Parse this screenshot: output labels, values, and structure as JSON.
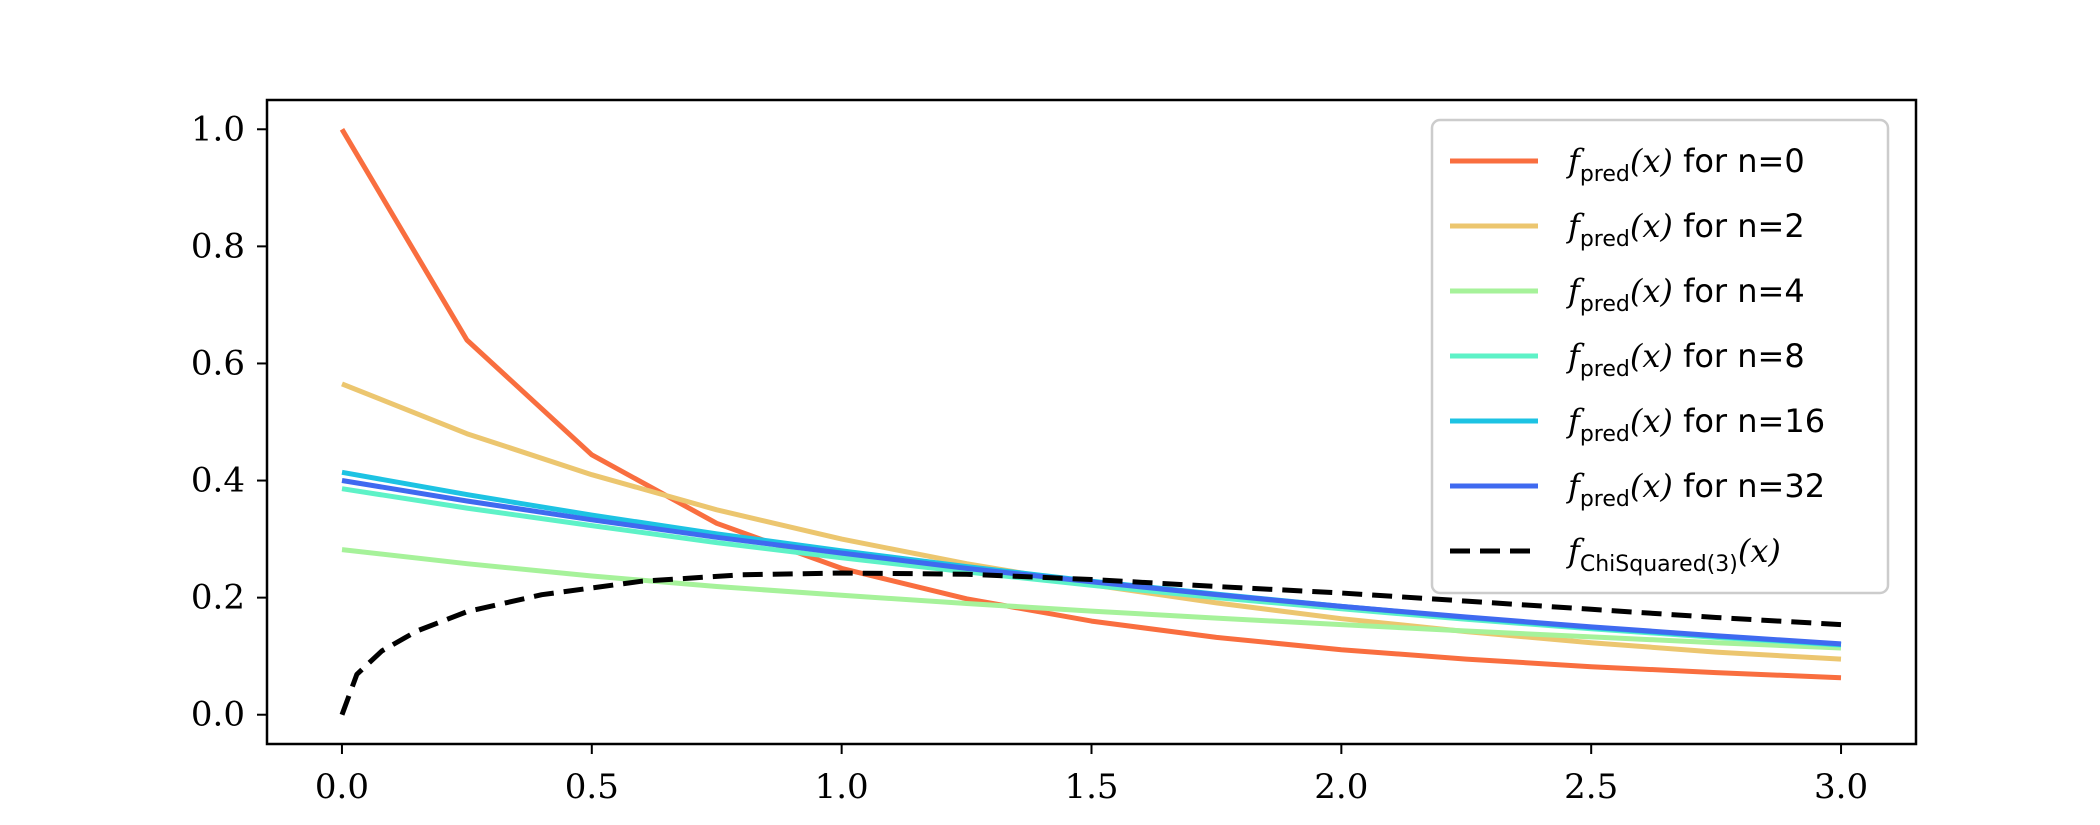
{
  "chart_data": {
    "type": "line",
    "title": "",
    "xlabel": "",
    "ylabel": "",
    "xlim": [
      -0.15,
      3.15
    ],
    "ylim": [
      -0.05,
      1.05
    ],
    "x_ticks": [
      "0.0",
      "0.5",
      "1.0",
      "1.5",
      "2.0",
      "2.5",
      "3.0"
    ],
    "y_ticks": [
      "0.0",
      "0.2",
      "0.4",
      "0.6",
      "0.8",
      "1.0"
    ],
    "grid": false,
    "legend_position": "top-right",
    "x": [
      0.0,
      0.25,
      0.5,
      0.75,
      1.0,
      1.25,
      1.5,
      1.75,
      2.0,
      2.25,
      2.5,
      2.75,
      3.0
    ],
    "series": [
      {
        "name": "n=0",
        "label": {
          "f": "f",
          "sub": "pred",
          "arg": "(x)",
          "suffix": " for n=0"
        },
        "color": "#f96e3f",
        "dash": "solid",
        "values": [
          1.0,
          0.64,
          0.444,
          0.327,
          0.25,
          0.198,
          0.16,
          0.132,
          0.111,
          0.095,
          0.082,
          0.072,
          0.063
        ]
      },
      {
        "name": "n=2",
        "label": {
          "f": "f",
          "sub": "pred",
          "arg": "(x)",
          "suffix": " for n=2"
        },
        "color": "#ecc66f",
        "dash": "solid",
        "values": [
          0.565,
          0.48,
          0.41,
          0.35,
          0.3,
          0.258,
          0.222,
          0.191,
          0.164,
          0.142,
          0.123,
          0.107,
          0.095
        ]
      },
      {
        "name": "n=4",
        "label": {
          "f": "f",
          "sub": "pred",
          "arg": "(x)",
          "suffix": " for n=4"
        },
        "color": "#a6f29a",
        "dash": "solid",
        "values": [
          0.282,
          0.258,
          0.237,
          0.219,
          0.204,
          0.19,
          0.177,
          0.165,
          0.154,
          0.143,
          0.133,
          0.123,
          0.114
        ]
      },
      {
        "name": "n=8",
        "label": {
          "f": "f",
          "sub": "pred",
          "arg": "(x)",
          "suffix": " for n=8"
        },
        "color": "#5ef2c7",
        "dash": "solid",
        "values": [
          0.386,
          0.353,
          0.323,
          0.294,
          0.268,
          0.244,
          0.221,
          0.2,
          0.181,
          0.163,
          0.147,
          0.132,
          0.119
        ]
      },
      {
        "name": "n=16",
        "label": {
          "f": "f",
          "sub": "pred",
          "arg": "(x)",
          "suffix": " for n=16"
        },
        "color": "#1dc3e3",
        "dash": "solid",
        "values": [
          0.414,
          0.376,
          0.341,
          0.309,
          0.28,
          0.253,
          0.228,
          0.206,
          0.185,
          0.166,
          0.149,
          0.134,
          0.12
        ]
      },
      {
        "name": "n=32",
        "label": {
          "f": "f",
          "sub": "pred",
          "arg": "(x)",
          "suffix": " for n=32"
        },
        "color": "#3f6af0",
        "dash": "solid",
        "values": [
          0.4,
          0.365,
          0.333,
          0.303,
          0.276,
          0.25,
          0.227,
          0.205,
          0.185,
          0.167,
          0.15,
          0.135,
          0.121
        ]
      }
    ],
    "reference": {
      "name": "ChiSquared(3)",
      "label": {
        "f": "f",
        "sub": "ChiSquared(3)",
        "arg": "(x)",
        "suffix": ""
      },
      "color": "#000000",
      "dash": "dashed",
      "x": [
        0.0,
        0.03,
        0.08,
        0.15,
        0.25,
        0.4,
        0.6,
        0.8,
        1.0,
        1.25,
        1.5,
        1.75,
        2.0,
        2.25,
        2.5,
        2.75,
        3.0
      ],
      "values": [
        0.0,
        0.069,
        0.109,
        0.143,
        0.176,
        0.205,
        0.228,
        0.239,
        0.242,
        0.24,
        0.231,
        0.219,
        0.208,
        0.194,
        0.18,
        0.166,
        0.154
      ]
    }
  }
}
